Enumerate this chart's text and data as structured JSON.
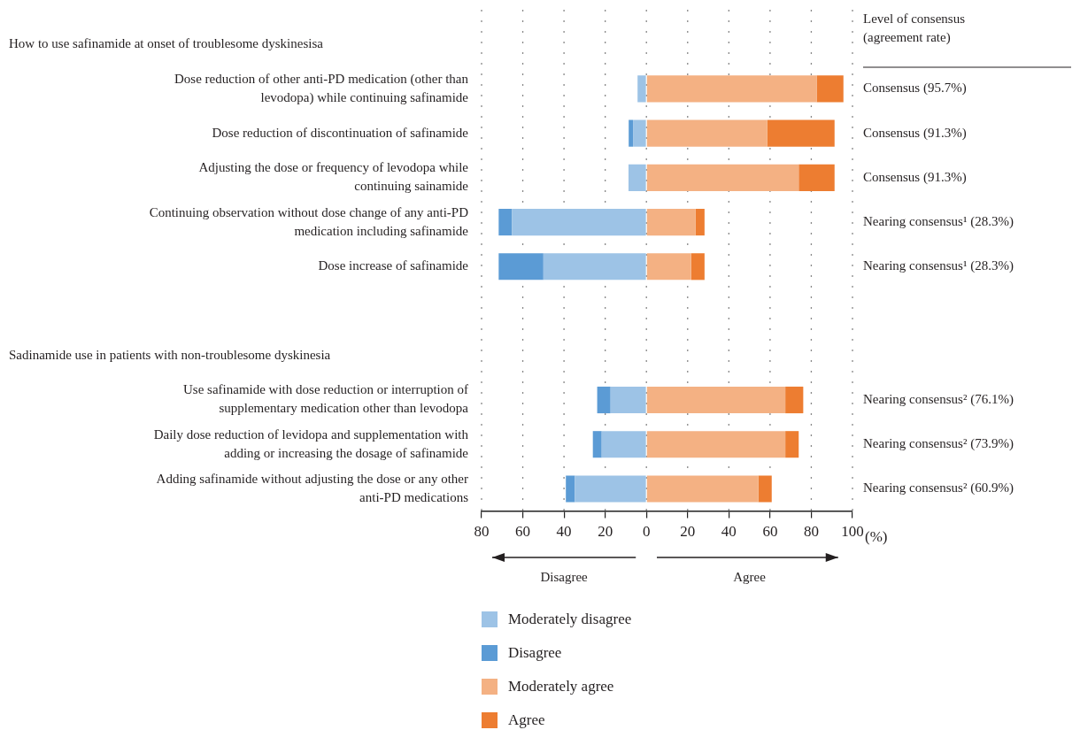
{
  "chart_data": {
    "type": "bar",
    "orientation": "horizontal",
    "stacked": true,
    "categories": [
      null,
      "Dose reduction of other anti-PD medication (other than levodopa) while continuing safinamide",
      "Dose reduction of discontinuation of safinamide",
      "Adjusting the dose or frequency of levodopa while continuing sainamide",
      "Continuing observation without dose change of any anti-PD medication including safinamide",
      "Dose increase of safinamide",
      null,
      null,
      "Use safinamide with dose reduction or interruption of supplementary medication other than levodopa",
      "Daily dose reduction of levidopa and supplementation with adding or increasing the dosage of safinamide",
      "Adding safinamide without adjusting the dose or any other anti-PD medications"
    ],
    "series": [
      {
        "name": "Moderately disagree",
        "color": "#9dc3e6",
        "values": [
          null,
          -4.3,
          -6.5,
          -8.7,
          -65.2,
          -50.0,
          null,
          null,
          -17.4,
          -21.7,
          -34.8
        ]
      },
      {
        "name": "Disagree",
        "color": "#5b9bd5",
        "values": [
          null,
          null,
          -2.1,
          null,
          -6.5,
          -21.7,
          null,
          null,
          -6.5,
          -4.3,
          -4.3
        ]
      },
      {
        "name": "Moderately agree",
        "color": "#f4b183",
        "values": [
          null,
          82.6,
          58.7,
          73.9,
          23.9,
          21.7,
          null,
          null,
          67.4,
          67.4,
          54.3
        ]
      },
      {
        "name": "Agree",
        "color": "#ed7d31",
        "values": [
          null,
          13.0,
          32.6,
          17.4,
          4.3,
          6.5,
          null,
          null,
          8.7,
          6.5,
          6.5
        ]
      }
    ],
    "xlim": [
      -80,
      100
    ],
    "xticks": [
      {
        "value": -80,
        "label": "80"
      },
      {
        "value": -60,
        "label": "60"
      },
      {
        "value": -40,
        "label": "40"
      },
      {
        "value": -20,
        "label": "20"
      },
      0,
      20,
      40,
      60,
      80,
      100
    ],
    "xlabel": "(%)",
    "grid": "x",
    "legend": "bottom left",
    "annotations": [
      "Level of consensus (agreement rate)",
      "How to use safinamide at onset of troublesome dyskinesisa",
      "Consensus (95.7%)",
      "Consensus (91.3%)",
      "Consensus (91.3%)",
      "Nearing consensus¹ (28.3%)",
      "Nearing consensus¹ (28.3%)",
      "Sadinamide use in patients with non-troublesome dyskinesia",
      "Nearing consensus² (76.1%)",
      "Nearing consensus² (73.9%)",
      "Nearing consensus² (60.9%)",
      "Disagree",
      "Agree"
    ]
  }
}
